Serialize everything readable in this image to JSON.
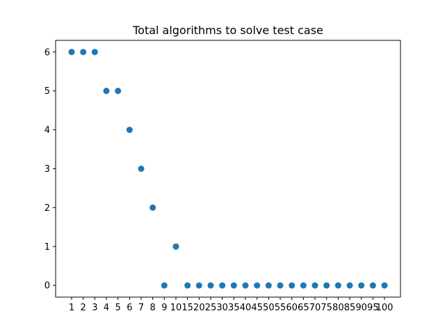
{
  "chart_data": {
    "type": "scatter",
    "title": "Total algorithms to solve test case",
    "xlabel": "",
    "ylabel": "",
    "categories": [
      "1",
      "2",
      "3",
      "4",
      "5",
      "6",
      "7",
      "8",
      "9",
      "10",
      "15",
      "20",
      "25",
      "30",
      "35",
      "40",
      "45",
      "50",
      "55",
      "60",
      "65",
      "70",
      "75",
      "80",
      "85",
      "90",
      "95",
      "100"
    ],
    "values": [
      6,
      6,
      6,
      5,
      5,
      4,
      3,
      2,
      0,
      1,
      0,
      0,
      0,
      0,
      0,
      0,
      0,
      0,
      0,
      0,
      0,
      0,
      0,
      0,
      0,
      0,
      0,
      0
    ],
    "yticks": [
      0,
      1,
      2,
      3,
      4,
      5,
      6
    ],
    "ylim": [
      -0.3,
      6.3
    ],
    "grid": false,
    "marker_color": "#1f77b4"
  }
}
